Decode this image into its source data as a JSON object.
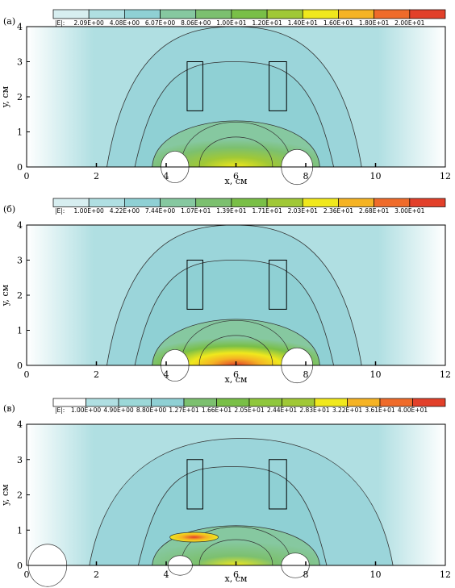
{
  "colors": {
    "scale": [
      "#ffffff",
      "#d7eef0",
      "#b0dfe2",
      "#8fd0d4",
      "#86c8a0",
      "#7cc06f",
      "#79bf47",
      "#a0c836",
      "#f0e81d",
      "#f5b324",
      "#ef6b2a",
      "#e2402a"
    ],
    "contour_line": "#333333",
    "frame": "#000000"
  },
  "chart_data": [
    {
      "type": "heatmap",
      "panel_label": "(а)",
      "quantity_label": "|E|:",
      "colorbar_ticks": [
        "2.09E+00",
        "4.08E+00",
        "6.07E+00",
        "8.06E+00",
        "1.00E+01",
        "1.20E+01",
        "1.40E+01",
        "1.60E+01",
        "1.80E+01",
        "2.00E+01"
      ],
      "colorbar_values": [
        2.09,
        4.08,
        6.07,
        8.06,
        10.0,
        12.0,
        14.0,
        16.0,
        18.0,
        20.0
      ],
      "xlabel": "x, см",
      "ylabel": "y, см",
      "xlim": [
        0,
        12
      ],
      "ylim": [
        0,
        4
      ],
      "xticks": [
        "0",
        "2",
        "4",
        "6",
        "8",
        "10",
        "12"
      ],
      "yticks": [
        "0",
        "1",
        "2",
        "3",
        "4"
      ],
      "rectangles": [
        {
          "x": [
            4.6,
            5.05
          ],
          "y": [
            1.6,
            3.0
          ]
        },
        {
          "x": [
            6.95,
            7.45
          ],
          "y": [
            1.6,
            3.0
          ]
        }
      ],
      "field_max": 20.0
    },
    {
      "type": "heatmap",
      "panel_label": "(б)",
      "quantity_label": "|E|:",
      "colorbar_ticks": [
        "1.00E+00",
        "4.22E+00",
        "7.44E+00",
        "1.07E+01",
        "1.39E+01",
        "1.71E+01",
        "2.03E+01",
        "2.36E+01",
        "2.68E+01",
        "3.00E+01"
      ],
      "colorbar_values": [
        1.0,
        4.22,
        7.44,
        10.7,
        13.9,
        17.1,
        20.3,
        23.6,
        26.8,
        30.0
      ],
      "xlabel": "x, см",
      "ylabel": "y, см",
      "xlim": [
        0,
        12
      ],
      "ylim": [
        0,
        4
      ],
      "xticks": [
        "0",
        "2",
        "4",
        "6",
        "8",
        "10",
        "12"
      ],
      "yticks": [
        "0",
        "1",
        "2",
        "3",
        "4"
      ],
      "rectangles": [
        {
          "x": [
            4.6,
            5.05
          ],
          "y": [
            1.6,
            3.0
          ]
        },
        {
          "x": [
            6.95,
            7.45
          ],
          "y": [
            1.6,
            3.0
          ]
        }
      ],
      "field_max": 30.0
    },
    {
      "type": "heatmap",
      "panel_label": "(в)",
      "quantity_label": "|E|:",
      "colorbar_ticks": [
        "1.00E+00",
        "4.90E+00",
        "8.80E+00",
        "1.27E+01",
        "1.66E+01",
        "2.05E+01",
        "2.44E+01",
        "2.83E+01",
        "3.22E+01",
        "3.61E+01",
        "4.00E+01"
      ],
      "colorbar_values": [
        1.0,
        4.9,
        8.8,
        12.7,
        16.6,
        20.5,
        24.4,
        28.3,
        32.2,
        36.1,
        40.0
      ],
      "xlabel": "x, см",
      "ylabel": "y, см",
      "xlim": [
        0,
        12
      ],
      "ylim": [
        0,
        4
      ],
      "xticks": [
        "0",
        "2",
        "4",
        "6",
        "8",
        "10",
        "12"
      ],
      "yticks": [
        "0",
        "1",
        "2",
        "3",
        "4"
      ],
      "rectangles": [
        {
          "x": [
            4.6,
            5.05
          ],
          "y": [
            1.6,
            3.0
          ]
        },
        {
          "x": [
            6.95,
            7.45
          ],
          "y": [
            1.6,
            3.0
          ]
        }
      ],
      "field_max": 40.0
    }
  ]
}
